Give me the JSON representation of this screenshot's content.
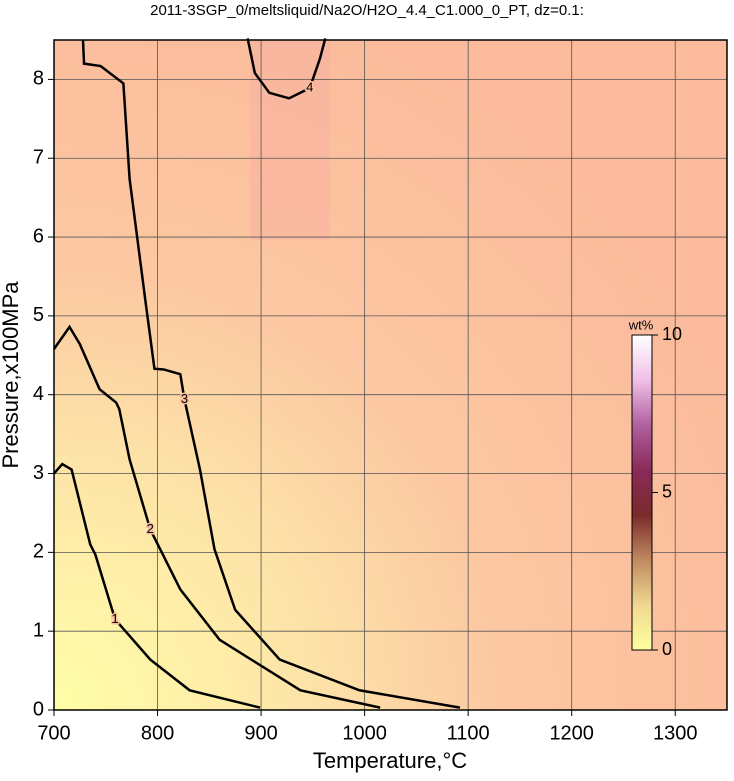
{
  "chart_data": {
    "type": "contour",
    "title": "2011-3SGP_0/meltsliquid/Na2O/H2O_4.4_C1.000_0_PT, dz=0.1:",
    "xlabel": "Temperature,°C",
    "ylabel": "Pressure,x100MPa",
    "xlim": [
      700,
      1350
    ],
    "ylim": [
      0,
      8.5
    ],
    "xticks": [
      700,
      800,
      900,
      1000,
      1100,
      1200,
      1300
    ],
    "yticks": [
      0,
      1,
      2,
      3,
      4,
      5,
      6,
      7,
      8
    ],
    "grid": true,
    "contours": [
      {
        "level": 1,
        "x": [
          700,
          708,
          717,
          735,
          740,
          759,
          793,
          831,
          899
        ],
        "y": [
          3.0,
          3.12,
          3.05,
          2.1,
          1.97,
          1.15,
          0.64,
          0.25,
          0.03
        ]
      },
      {
        "level": 2,
        "x": [
          700,
          715,
          725,
          744,
          760,
          763,
          773,
          793,
          822,
          860,
          938,
          1015
        ],
        "y": [
          4.58,
          4.86,
          4.64,
          4.07,
          3.9,
          3.82,
          3.18,
          2.29,
          1.53,
          0.89,
          0.25,
          0.03
        ]
      },
      {
        "level": 3,
        "x": [
          728,
          729,
          745,
          767,
          773,
          788,
          797,
          806,
          822,
          826,
          841,
          855,
          875,
          918,
          995,
          1092
        ],
        "y": [
          8.5,
          8.2,
          8.17,
          7.95,
          6.74,
          5.22,
          4.33,
          4.32,
          4.26,
          3.94,
          3.05,
          2.04,
          1.27,
          0.64,
          0.25,
          0.03
        ]
      },
      {
        "level": 4,
        "x": [
          887,
          894,
          908,
          927,
          947,
          957,
          962
        ],
        "y": [
          8.52,
          8.08,
          7.83,
          7.76,
          7.89,
          8.27,
          8.52
        ]
      }
    ],
    "colorbar": {
      "label": "wt%",
      "lim": [
        0,
        10
      ],
      "ticks": [
        0,
        5,
        10
      ],
      "colors": [
        "#ffffa0",
        "#f0d890",
        "#c08a60",
        "#7a2a2a",
        "#8a2a5a",
        "#b060a0",
        "#f0c0e8",
        "#ffffff"
      ]
    }
  }
}
